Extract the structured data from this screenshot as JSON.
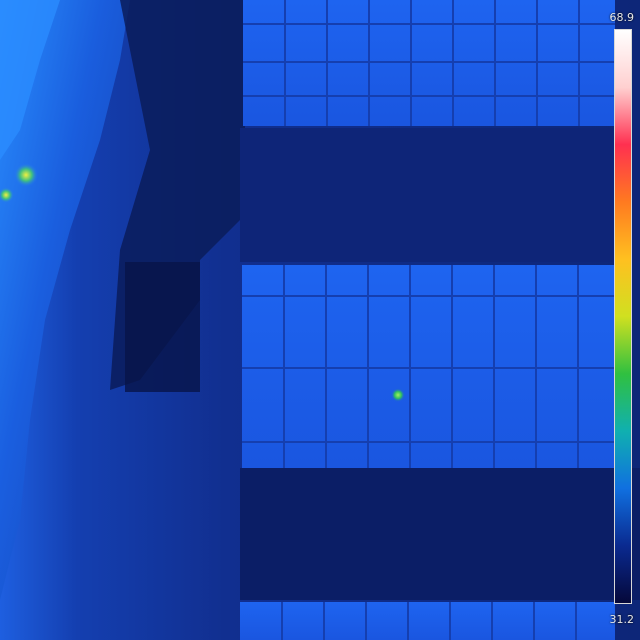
{
  "image": {
    "type": "thermal-aerial-photo",
    "subject": "solar-panel-rows"
  },
  "scale": {
    "max_label": "68.9",
    "min_label": "31.2",
    "palette": [
      "#ffffff",
      "#ffd0d0",
      "#ff3050",
      "#ff7a20",
      "#ffc020",
      "#d0e020",
      "#30c040",
      "#10b0b0",
      "#1070e0",
      "#0a2a90",
      "#05083a"
    ]
  },
  "colors": {
    "background": "#0f2a88",
    "ground_dark": "#0a1a55",
    "panel": "#1a5ae6",
    "panel_line": "#153fb0",
    "hotspot": "#40d040",
    "vegetation": "#1f78ff"
  },
  "hotspots": [
    {
      "label": "panel-hotspot",
      "severity": "moderate",
      "color": "#60d040"
    },
    {
      "label": "vegetation-warm-spot",
      "severity": "high",
      "color": "#e8e020"
    }
  ]
}
